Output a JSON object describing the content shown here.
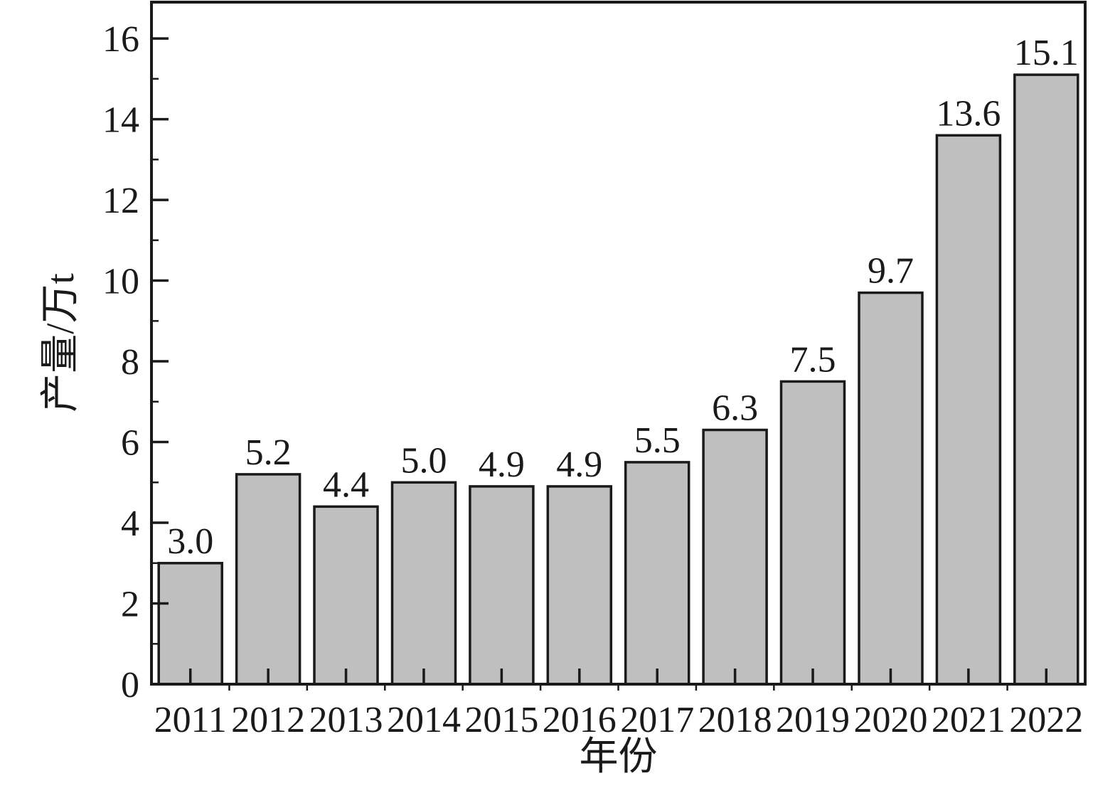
{
  "figure": {
    "background": "#ffffff"
  },
  "chart_data": {
    "type": "bar",
    "title": "",
    "categories": [
      "2011",
      "2012",
      "2013",
      "2014",
      "2015",
      "2016",
      "2017",
      "2018",
      "2019",
      "2020",
      "2021",
      "2022"
    ],
    "values": [
      3.0,
      5.2,
      4.4,
      5.0,
      4.9,
      4.9,
      5.5,
      6.3,
      7.5,
      9.7,
      13.6,
      15.1
    ],
    "bar_labels": [
      "3.0",
      "5.2",
      "4.4",
      "5.0",
      "4.9",
      "4.9",
      "5.5",
      "6.3",
      "7.5",
      "9.7",
      "13.6",
      "15.1"
    ],
    "xlabel": "年份",
    "ylabel": "产量/万t",
    "ylim": [
      0,
      16.9
    ],
    "yticks": [
      0,
      2,
      4,
      6,
      8,
      10,
      12,
      14,
      16
    ],
    "ytick_labels": [
      "0",
      "2",
      "4",
      "6",
      "8",
      "10",
      "12",
      "14",
      "16"
    ],
    "minor_yticks": [
      1,
      3,
      5,
      7,
      9,
      11,
      13,
      15
    ],
    "grid": false,
    "legend_position": "none",
    "colors": {
      "bar_fill": "#bfbfbf",
      "bar_edge": "#1a1a1a",
      "axis": "#1a1a1a",
      "text": "#1a1a1a",
      "background": "#ffffff"
    }
  }
}
